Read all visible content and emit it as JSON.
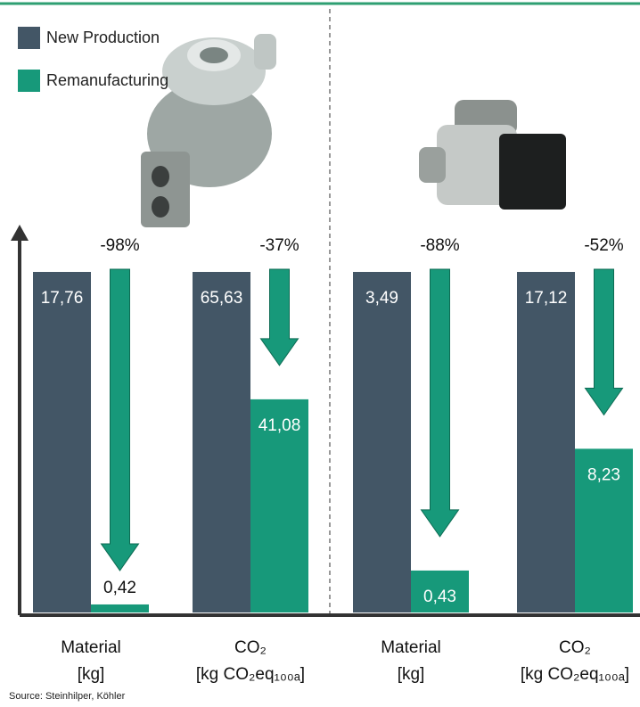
{
  "chart_data": {
    "type": "bar",
    "categories": [
      [
        "Material",
        "[kg]"
      ],
      [
        "CO₂",
        "[kg CO₂eq₁₀₀ₐ]"
      ],
      [
        "Material",
        "[kg]"
      ],
      [
        "CO₂",
        "[kg CO₂eq₁₀₀ₐ]"
      ]
    ],
    "series": [
      {
        "name": "New Production",
        "color": "#435666",
        "values": [
          17.76,
          65.63,
          3.49,
          17.12
        ],
        "value_labels": [
          "17,76",
          "65,63",
          "3,49",
          "17,12"
        ]
      },
      {
        "name": "Remanufacturing",
        "color": "#17997a",
        "values": [
          0.42,
          41.08,
          0.43,
          8.23
        ],
        "value_labels": [
          "0,42",
          "41,08",
          "0,43",
          "8,23"
        ]
      }
    ],
    "reductions": {
      "values": [
        -98,
        -37,
        -88,
        -52
      ],
      "value_labels": [
        "-98%",
        "-37%",
        "-88%",
        "-52%"
      ]
    },
    "legend": "top-left",
    "source": "Source: Steinhilper, Köhler"
  }
}
